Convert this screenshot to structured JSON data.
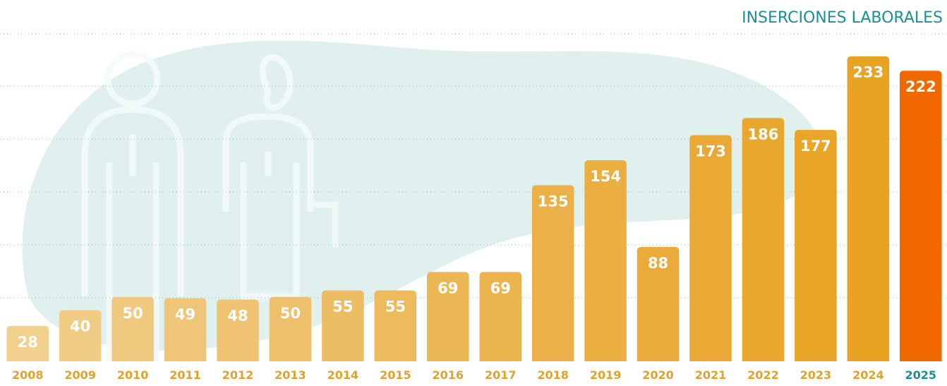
{
  "chart_data": {
    "type": "bar",
    "title": "INSERCIONES LABORALES",
    "categories": [
      "2008",
      "2009",
      "2010",
      "2011",
      "2012",
      "2013",
      "2014",
      "2015",
      "2016",
      "2017",
      "2018",
      "2019",
      "2020",
      "2021",
      "2022",
      "2023",
      "2024",
      "2025"
    ],
    "values": [
      28,
      40,
      50,
      49,
      48,
      50,
      55,
      55,
      69,
      69,
      135,
      154,
      88,
      173,
      186,
      177,
      233,
      222
    ],
    "colors": [
      "#f2d08e",
      "#f1cc85",
      "#f0c97e",
      "#efc677",
      "#efc372",
      "#eec06b",
      "#edbd63",
      "#edba5c",
      "#ecb755",
      "#ecb44f",
      "#ebb148",
      "#ebae41",
      "#eaab3a",
      "#eaa934",
      "#e9a72e",
      "#e9a528",
      "#e9a322",
      "#f26800"
    ],
    "ylim": [
      0,
      250
    ]
  }
}
